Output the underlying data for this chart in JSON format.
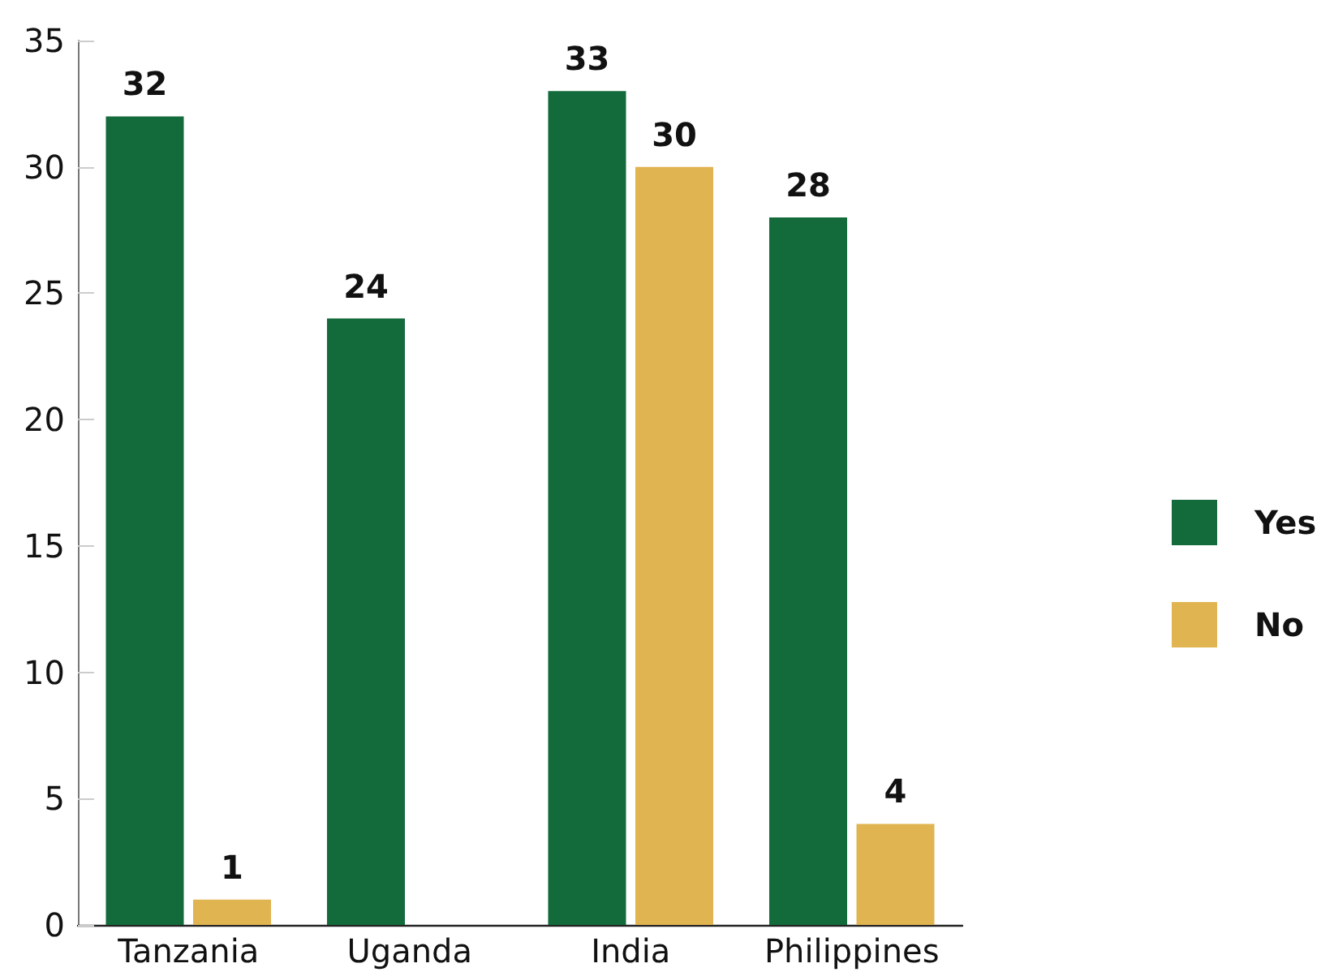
{
  "chart_data": {
    "type": "bar",
    "categories": [
      "Tanzania",
      "Uganda",
      "India",
      "Philippines"
    ],
    "series": [
      {
        "name": "Yes",
        "color": "#136a3a",
        "values": [
          32,
          24,
          33,
          28
        ]
      },
      {
        "name": "No",
        "color": "#e0b451",
        "values": [
          1,
          null,
          30,
          4
        ]
      }
    ],
    "ylim": [
      0,
      35
    ],
    "yticks": [
      0,
      5,
      10,
      15,
      20,
      25,
      30,
      35
    ],
    "grid": false,
    "legend": "right",
    "data_labels": true
  }
}
